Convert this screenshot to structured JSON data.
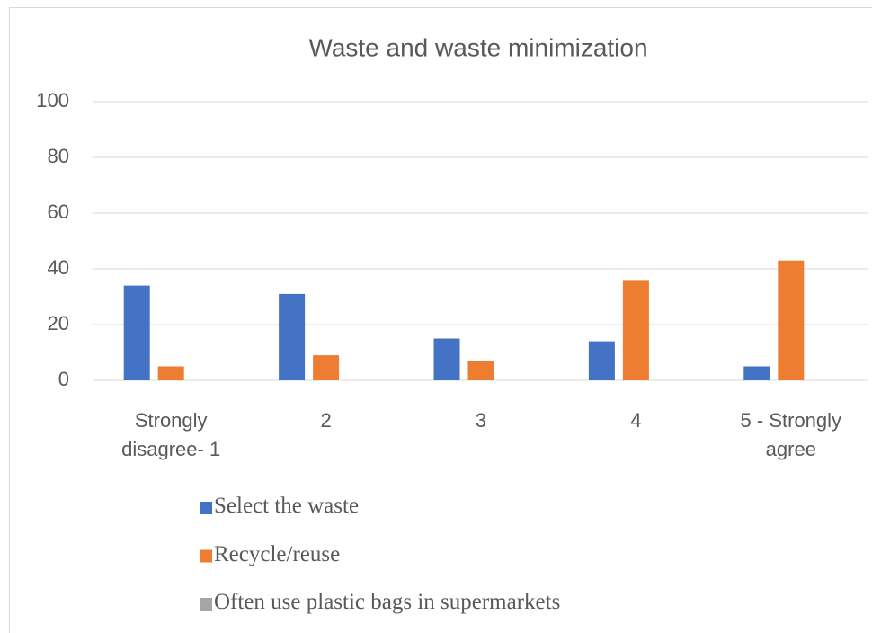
{
  "chart_data": {
    "type": "bar",
    "title": "Waste and waste minimization",
    "categories": [
      "Strongly disagree- 1",
      "2",
      "3",
      "4",
      "5 - Strongly agree"
    ],
    "series": [
      {
        "name": "Select the waste",
        "color": "#4472c4",
        "values": [
          34,
          31,
          15,
          14,
          5
        ]
      },
      {
        "name": "Recycle/reuse",
        "color": "#ed7d31",
        "values": [
          5,
          9,
          7,
          36,
          43
        ]
      },
      {
        "name": "Often use plastic bags in supermarkets",
        "color": "#a5a5a5",
        "values": [
          0,
          0,
          0,
          0,
          0
        ]
      }
    ],
    "ylim": [
      0,
      100
    ],
    "yticks": [
      0,
      20,
      40,
      60,
      80,
      100
    ],
    "grid": true,
    "legend": "bottom"
  }
}
